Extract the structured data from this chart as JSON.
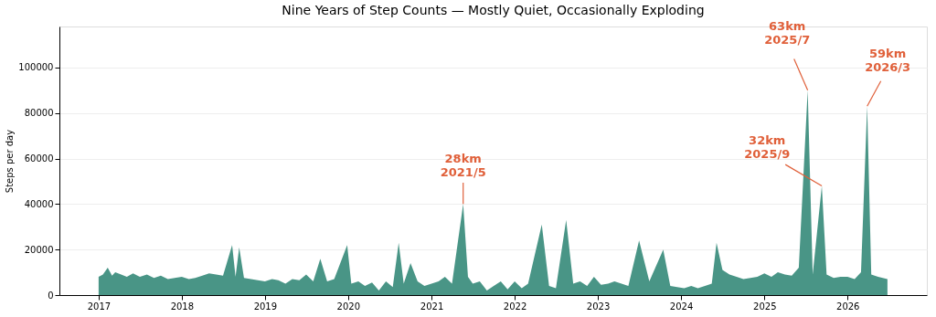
{
  "chart_data": {
    "type": "area",
    "title": "Nine Years of Step Counts — Mostly Quiet, Occasionally Exploding",
    "ylabel": "Steps per day",
    "x": [
      "2017-01-01",
      "2017-01-20",
      "2017-02-10",
      "2017-03-01",
      "2017-03-15",
      "2017-04-10",
      "2017-05-05",
      "2017-06-01",
      "2017-07-01",
      "2017-08-01",
      "2017-09-01",
      "2017-10-01",
      "2017-11-01",
      "2017-12-01",
      "2018-01-01",
      "2018-02-01",
      "2018-03-01",
      "2018-04-01",
      "2018-05-01",
      "2018-06-01",
      "2018-07-01",
      "2018-08-10",
      "2018-08-25",
      "2018-09-10",
      "2018-10-01",
      "2018-11-01",
      "2018-12-01",
      "2019-01-01",
      "2019-02-01",
      "2019-03-01",
      "2019-04-01",
      "2019-05-01",
      "2019-06-01",
      "2019-07-01",
      "2019-08-01",
      "2019-09-01",
      "2019-10-01",
      "2019-11-01",
      "2019-12-28",
      "2020-01-15",
      "2020-02-15",
      "2020-03-15",
      "2020-04-15",
      "2020-05-15",
      "2020-06-15",
      "2020-07-15",
      "2020-08-10",
      "2020-09-01",
      "2020-10-01",
      "2020-11-01",
      "2020-12-01",
      "2021-01-01",
      "2021-02-01",
      "2021-03-01",
      "2021-04-01",
      "2021-05-20",
      "2021-06-10",
      "2021-07-01",
      "2021-08-01",
      "2021-09-01",
      "2021-10-01",
      "2021-11-01",
      "2021-12-01",
      "2022-01-01",
      "2022-02-01",
      "2022-03-01",
      "2022-04-30",
      "2022-06-01",
      "2022-07-01",
      "2022-08-15",
      "2022-09-15",
      "2022-10-15",
      "2022-11-15",
      "2022-12-15",
      "2023-01-15",
      "2023-02-15",
      "2023-03-15",
      "2023-04-15",
      "2023-05-15",
      "2023-07-01",
      "2023-08-15",
      "2023-10-15",
      "2023-11-15",
      "2023-12-15",
      "2024-01-15",
      "2024-02-15",
      "2024-03-15",
      "2024-04-15",
      "2024-05-15",
      "2024-06-05",
      "2024-07-01",
      "2024-08-01",
      "2024-09-01",
      "2024-10-01",
      "2024-11-01",
      "2024-12-01",
      "2025-01-01",
      "2025-02-01",
      "2025-03-01",
      "2025-04-01",
      "2025-05-01",
      "2025-06-01",
      "2025-07-10",
      "2025-08-01",
      "2025-09-10",
      "2025-10-01",
      "2025-11-01",
      "2025-12-01",
      "2026-01-01",
      "2026-02-01",
      "2026-03-01",
      "2026-03-28",
      "2026-04-15",
      "2026-05-15",
      "2026-06-25"
    ],
    "values": [
      8000,
      9000,
      12000,
      8500,
      10000,
      9000,
      8000,
      9500,
      8000,
      9000,
      7500,
      8500,
      7000,
      7500,
      8000,
      7000,
      7500,
      8500,
      9500,
      9000,
      8500,
      22000,
      8000,
      21000,
      7500,
      7000,
      6500,
      6000,
      7000,
      6500,
      5000,
      7000,
      6500,
      9000,
      6000,
      16000,
      6000,
      7000,
      22000,
      5000,
      6000,
      4000,
      5500,
      2000,
      6000,
      3500,
      23000,
      5000,
      14000,
      6000,
      4000,
      5000,
      6000,
      8000,
      5000,
      40000,
      8000,
      5000,
      6000,
      2000,
      4000,
      6000,
      2500,
      6000,
      3000,
      5000,
      31000,
      4000,
      3000,
      33000,
      5000,
      6000,
      4000,
      8000,
      4500,
      5000,
      6000,
      5000,
      4000,
      24000,
      6000,
      20000,
      4000,
      3500,
      3000,
      4000,
      3000,
      4000,
      5000,
      23000,
      11000,
      9000,
      8000,
      7000,
      7500,
      8000,
      9500,
      8000,
      10000,
      9000,
      8500,
      12000,
      90000,
      9000,
      48000,
      9000,
      7500,
      8000,
      8000,
      7000,
      10000,
      83000,
      9000,
      8000,
      7000
    ],
    "color": "#3f8f7f",
    "xlim": [
      "2016-07-13",
      "2026-12-15"
    ],
    "xticks": [
      "2017",
      "2018",
      "2019",
      "2020",
      "2021",
      "2022",
      "2023",
      "2024",
      "2025",
      "2026"
    ],
    "ylim": [
      0,
      118000
    ],
    "yticks": [
      0,
      20000,
      40000,
      60000,
      80000,
      100000
    ],
    "grid": "y",
    "annotations": [
      {
        "text": "28km\n2021/5",
        "x": "2021-05-20",
        "y": 40000
      },
      {
        "text": "63km\n2025/7",
        "x": "2025-07-10",
        "y": 90000
      },
      {
        "text": "32km\n2025/9",
        "x": "2025-09-10",
        "y": 48000
      },
      {
        "text": "59km\n2026/3",
        "x": "2026-03-28",
        "y": 83000
      }
    ]
  }
}
